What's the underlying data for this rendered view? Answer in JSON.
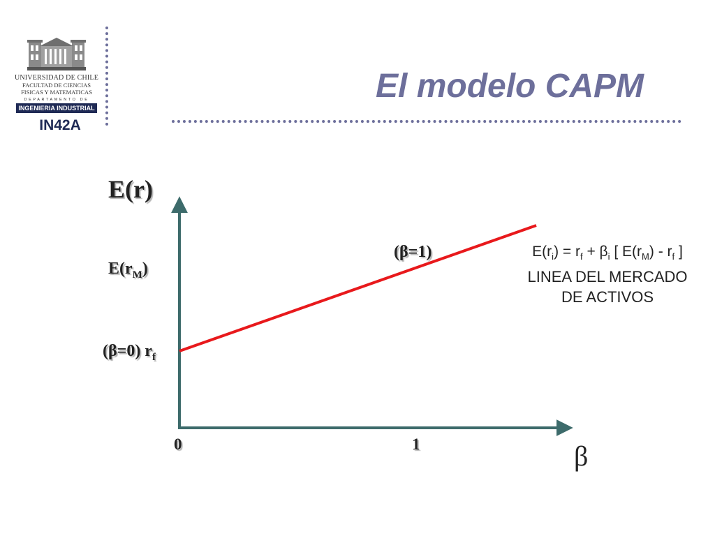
{
  "logo": {
    "university": "UNIVERSIDAD DE CHILE",
    "faculty_line1": "FACULTAD DE CIENCIAS",
    "faculty_line2": "FISICAS Y MATEMATICAS",
    "department": "DEPARTAMENTO DE",
    "department_name": "INGENIERIA INDUSTRIAL"
  },
  "course_code": "IN42A",
  "title": "El modelo CAPM",
  "diagram": {
    "y_axis_label": "E(r)",
    "x_axis_label": "β",
    "erm_label": {
      "main": "E(r",
      "sub": "M",
      "end": ")"
    },
    "rf_label": {
      "main": "(β=0) r",
      "sub": "f"
    },
    "beta1_label": "(β=1)",
    "tick_0": "0",
    "tick_1": "1",
    "line_color": "#e8191c",
    "axis_color": "#3d6b6b",
    "equation": {
      "p1": "E(r",
      "s1": "i",
      "p2": ") = r",
      "s2": "f",
      "p3": " + β",
      "s3": "i",
      "p4": " [ E(r",
      "s4": "M",
      "p5": ") - r",
      "s5": "f",
      "p6": " ]"
    },
    "caption_line1": "LINEA DEL MERCADO",
    "caption_line2": "DE ACTIVOS"
  }
}
